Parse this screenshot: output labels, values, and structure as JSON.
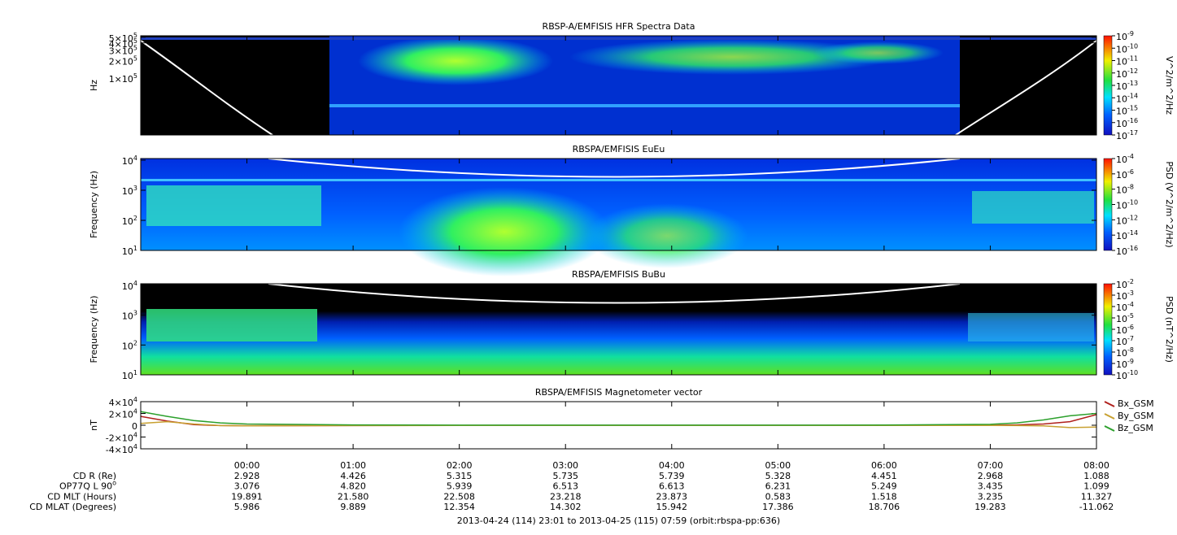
{
  "chart_data": [
    {
      "type": "spectrogram",
      "title": "RBSP-A/EMFISIS  HFR Spectra Data",
      "ylabel": "Hz",
      "log": true,
      "ylim": [
        10500,
        530000
      ],
      "yticks": [
        {
          "value": 500000,
          "label": "5×10^5"
        },
        {
          "value": 400000,
          "label": "4×10^5"
        },
        {
          "value": 300000,
          "label": "3×10^5"
        },
        {
          "value": 200000,
          "label": "2×10^5"
        },
        {
          "value": 100000,
          "label": "1×10^5"
        }
      ],
      "colorbar": {
        "label": "V^2/m^2/Hz",
        "lim": [
          1e-17,
          1e-09
        ],
        "ticks": [
          {
            "value": 1e-09,
            "label": "10^-9"
          },
          {
            "value": 1e-10,
            "label": "10^-10"
          },
          {
            "value": 1e-11,
            "label": "10^-11"
          },
          {
            "value": 1e-12,
            "label": "10^-12"
          },
          {
            "value": 1e-13,
            "label": "10^-13"
          },
          {
            "value": 1e-14,
            "label": "10^-14"
          },
          {
            "value": 1e-15,
            "label": "10^-15"
          },
          {
            "value": 1e-16,
            "label": "10^-16"
          },
          {
            "value": 1e-17,
            "label": "10^-17"
          }
        ]
      }
    },
    {
      "type": "spectrogram",
      "title": "RBSPA/EMFISIS  EuEu",
      "ylabel": "Frequency (Hz)",
      "log": true,
      "ylim": [
        10,
        11300
      ],
      "yticks": [
        {
          "value": 10000,
          "label": "10^4"
        },
        {
          "value": 1000,
          "label": "10^3"
        },
        {
          "value": 100,
          "label": "10^2"
        },
        {
          "value": 10,
          "label": "10^1"
        }
      ],
      "colorbar": {
        "label": "PSD (V^2/m^2/Hz)",
        "lim": [
          1e-16,
          0.0001
        ],
        "ticks": [
          {
            "value": 0.0001,
            "label": "10^-4"
          },
          {
            "value": 1e-06,
            "label": "10^-6"
          },
          {
            "value": 1e-08,
            "label": "10^-8"
          },
          {
            "value": 1e-10,
            "label": "10^-10"
          },
          {
            "value": 1e-12,
            "label": "10^-12"
          },
          {
            "value": 1e-14,
            "label": "10^-14"
          },
          {
            "value": 1e-16,
            "label": "10^-16"
          }
        ]
      }
    },
    {
      "type": "spectrogram",
      "title": "RBSPA/EMFISIS  BuBu",
      "ylabel": "Frequency (Hz)",
      "log": true,
      "ylim": [
        10,
        11300
      ],
      "yticks": [
        {
          "value": 10000,
          "label": "10^4"
        },
        {
          "value": 1000,
          "label": "10^3"
        },
        {
          "value": 100,
          "label": "10^2"
        },
        {
          "value": 10,
          "label": "10^1"
        }
      ],
      "colorbar": {
        "label": "PSD (nT^2/Hz)",
        "lim": [
          1e-10,
          0.01
        ],
        "ticks": [
          {
            "value": 0.01,
            "label": "10^-2"
          },
          {
            "value": 0.001,
            "label": "10^-3"
          },
          {
            "value": 0.0001,
            "label": "10^-4"
          },
          {
            "value": 1e-05,
            "label": "10^-5"
          },
          {
            "value": 1e-06,
            "label": "10^-6"
          },
          {
            "value": 1e-07,
            "label": "10^-7"
          },
          {
            "value": 1e-08,
            "label": "10^-8"
          },
          {
            "value": 1e-09,
            "label": "10^-9"
          },
          {
            "value": 1e-10,
            "label": "10^-10"
          }
        ]
      }
    },
    {
      "type": "line",
      "title": "RBSPA/EMFISIS  Magnetometer vector",
      "ylabel": "nT",
      "ylim": [
        -40000,
        40000
      ],
      "yticks": [
        {
          "value": 40000,
          "label": "4×10^4"
        },
        {
          "value": 20000,
          "label": "2×10^4"
        },
        0,
        {
          "value": -20000,
          "label": "-2×10^4"
        },
        {
          "value": -40000,
          "label": "-4×10^4"
        }
      ],
      "xlim": [
        -1,
        8
      ],
      "xticks": [
        {
          "value": 0,
          "label": "00:00"
        },
        {
          "value": 1,
          "label": "01:00"
        },
        {
          "value": 2,
          "label": "02:00"
        },
        {
          "value": 3,
          "label": "03:00"
        },
        {
          "value": 4,
          "label": "04:00"
        },
        {
          "value": 5,
          "label": "05:00"
        },
        {
          "value": 6,
          "label": "06:00"
        },
        {
          "value": 7,
          "label": "07:00"
        },
        {
          "value": 8,
          "label": "08:00"
        }
      ],
      "x": [
        -1,
        -0.75,
        -0.5,
        -0.25,
        0,
        1,
        2,
        3,
        4,
        5,
        6,
        7,
        7.25,
        7.5,
        7.75,
        8
      ],
      "series": [
        {
          "name": "Bx_GSM",
          "color": "#b0201c",
          "values": [
            15000,
            7000,
            1000,
            -500,
            -800,
            -500,
            -300,
            -200,
            -200,
            -200,
            -200,
            0,
            500,
            2000,
            6000,
            18000
          ]
        },
        {
          "name": "By_GSM",
          "color": "#c8a030",
          "values": [
            3000,
            6000,
            2000,
            -500,
            -1000,
            -600,
            -400,
            -300,
            -300,
            -300,
            -300,
            -400,
            -600,
            -1000,
            -4000,
            -3000
          ]
        },
        {
          "name": "Bz_GSM",
          "color": "#2ca02c",
          "values": [
            23000,
            15000,
            8000,
            4000,
            2000,
            500,
            200,
            100,
            100,
            150,
            300,
            1500,
            4000,
            9000,
            16000,
            20000
          ]
        }
      ]
    }
  ],
  "ephemeris": {
    "rows": [
      {
        "label": "CD R (Re)",
        "values": [
          "2.928",
          "4.426",
          "5.315",
          "5.735",
          "5.739",
          "5.328",
          "4.451",
          "2.968",
          "1.088"
        ]
      },
      {
        "label": "OP77Q L 90^o",
        "values": [
          "3.076",
          "4.820",
          "5.939",
          "6.513",
          "6.613",
          "6.231",
          "5.249",
          "3.435",
          "1.099"
        ]
      },
      {
        "label": "CD MLT (Hours)",
        "values": [
          "19.891",
          "21.580",
          "22.508",
          "23.218",
          "23.873",
          "0.583",
          "1.518",
          "3.235",
          "11.327"
        ]
      },
      {
        "label": "CD MLAT (Degrees)",
        "values": [
          "5.986",
          "9.889",
          "12.354",
          "14.302",
          "15.942",
          "17.386",
          "18.706",
          "19.283",
          "-11.062"
        ]
      }
    ],
    "footer": "2013-04-24 (114) 23:01 to 2013-04-25 (115) 07:59 (orbit:rbspa-pp:636)"
  }
}
